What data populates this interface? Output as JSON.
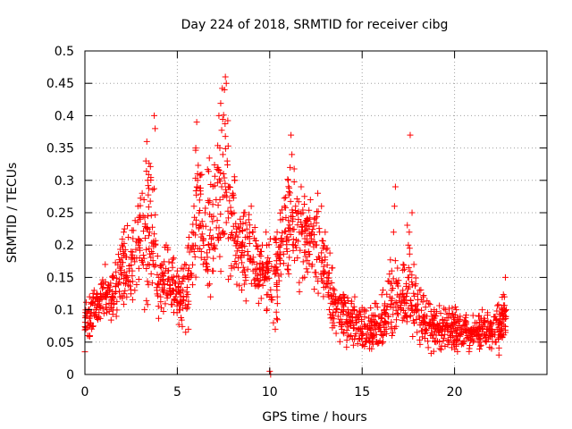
{
  "chart_data": {
    "type": "scatter",
    "title": "Day 224 of 2018, SRMTID for receiver cibg",
    "xlabel": "GPS time / hours",
    "ylabel": "SRMTID / TECUs",
    "xlim": [
      0,
      25
    ],
    "ylim": [
      0,
      0.5
    ],
    "x_ticks": [
      0,
      5,
      10,
      15,
      20
    ],
    "x_tick_labels": [
      "0",
      "5",
      "10",
      "15",
      "20"
    ],
    "y_ticks": [
      0,
      0.05,
      0.1,
      0.15,
      0.2,
      0.25,
      0.3,
      0.35,
      0.4,
      0.45,
      0.5
    ],
    "y_tick_labels": [
      "0",
      "0.05",
      "0.1",
      "0.15",
      "0.2",
      "0.25",
      "0.3",
      "0.35",
      "0.4",
      "0.45",
      "0.5"
    ],
    "grid": true,
    "marker": "+",
    "color": "#ff0000",
    "series": [
      {
        "name": "SRMTID",
        "points": [
          [
            0.0,
            0.035
          ],
          [
            0.05,
            0.07
          ],
          [
            0.1,
            0.09
          ],
          [
            0.15,
            0.06
          ],
          [
            0.2,
            0.1
          ],
          [
            0.25,
            0.12
          ],
          [
            0.3,
            0.08
          ],
          [
            0.35,
            0.095
          ],
          [
            0.4,
            0.11
          ],
          [
            0.45,
            0.075
          ],
          [
            0.5,
            0.13
          ],
          [
            0.6,
            0.1
          ],
          [
            0.7,
            0.085
          ],
          [
            0.8,
            0.115
          ],
          [
            0.9,
            0.14
          ],
          [
            1.0,
            0.12
          ],
          [
            1.1,
            0.17
          ],
          [
            1.2,
            0.1
          ],
          [
            1.3,
            0.13
          ],
          [
            1.4,
            0.11
          ],
          [
            1.5,
            0.15
          ],
          [
            1.6,
            0.125
          ],
          [
            1.7,
            0.09
          ],
          [
            1.8,
            0.14
          ],
          [
            1.9,
            0.12
          ],
          [
            2.0,
            0.2
          ],
          [
            2.1,
            0.22
          ],
          [
            2.2,
            0.14
          ],
          [
            2.3,
            0.23
          ],
          [
            2.4,
            0.16
          ],
          [
            2.5,
            0.19
          ],
          [
            2.6,
            0.21
          ],
          [
            2.7,
            0.13
          ],
          [
            2.8,
            0.18
          ],
          [
            2.9,
            0.2
          ],
          [
            3.0,
            0.24
          ],
          [
            3.1,
            0.28
          ],
          [
            3.2,
            0.27
          ],
          [
            3.3,
            0.33
          ],
          [
            3.35,
            0.36
          ],
          [
            3.4,
            0.3
          ],
          [
            3.5,
            0.22
          ],
          [
            3.6,
            0.19
          ],
          [
            3.7,
            0.17
          ],
          [
            3.75,
            0.4
          ],
          [
            3.8,
            0.38
          ],
          [
            3.9,
            0.13
          ],
          [
            4.0,
            0.15
          ],
          [
            4.1,
            0.12
          ],
          [
            4.2,
            0.17
          ],
          [
            4.3,
            0.14
          ],
          [
            4.4,
            0.2
          ],
          [
            4.5,
            0.16
          ],
          [
            4.6,
            0.13
          ],
          [
            4.7,
            0.15
          ],
          [
            4.8,
            0.18
          ],
          [
            4.9,
            0.12
          ],
          [
            5.0,
            0.16
          ],
          [
            5.1,
            0.1
          ],
          [
            5.2,
            0.14
          ],
          [
            5.3,
            0.13
          ],
          [
            5.4,
            0.17
          ],
          [
            5.5,
            0.12
          ],
          [
            5.6,
            0.07
          ],
          [
            5.7,
            0.15
          ],
          [
            5.8,
            0.22
          ],
          [
            5.9,
            0.26
          ],
          [
            6.0,
            0.35
          ],
          [
            6.05,
            0.39
          ],
          [
            6.1,
            0.3
          ],
          [
            6.2,
            0.23
          ],
          [
            6.3,
            0.19
          ],
          [
            6.4,
            0.21
          ],
          [
            6.5,
            0.25
          ],
          [
            6.6,
            0.17
          ],
          [
            6.7,
            0.2
          ],
          [
            6.8,
            0.12
          ],
          [
            6.9,
            0.16
          ],
          [
            7.0,
            0.2
          ],
          [
            7.1,
            0.27
          ],
          [
            7.2,
            0.32
          ],
          [
            7.25,
            0.4
          ],
          [
            7.3,
            0.35
          ],
          [
            7.4,
            0.29
          ],
          [
            7.5,
            0.31
          ],
          [
            7.55,
            0.44
          ],
          [
            7.6,
            0.46
          ],
          [
            7.65,
            0.45
          ],
          [
            7.7,
            0.33
          ],
          [
            7.8,
            0.29
          ],
          [
            7.9,
            0.25
          ],
          [
            8.0,
            0.28
          ],
          [
            8.1,
            0.3
          ],
          [
            8.2,
            0.22
          ],
          [
            8.3,
            0.18
          ],
          [
            8.4,
            0.24
          ],
          [
            8.5,
            0.2
          ],
          [
            8.6,
            0.25
          ],
          [
            8.7,
            0.15
          ],
          [
            8.8,
            0.19
          ],
          [
            8.9,
            0.21
          ],
          [
            9.0,
            0.26
          ],
          [
            9.1,
            0.16
          ],
          [
            9.2,
            0.14
          ],
          [
            9.3,
            0.17
          ],
          [
            9.4,
            0.11
          ],
          [
            9.5,
            0.19
          ],
          [
            9.6,
            0.2
          ],
          [
            9.7,
            0.15
          ],
          [
            9.8,
            0.22
          ],
          [
            9.9,
            0.18
          ],
          [
            10.0,
            0.005
          ],
          [
            10.05,
            0.0
          ],
          [
            10.1,
            0.12
          ],
          [
            10.2,
            0.08
          ],
          [
            10.3,
            0.07
          ],
          [
            10.4,
            0.22
          ],
          [
            10.5,
            0.18
          ],
          [
            10.6,
            0.2
          ],
          [
            10.7,
            0.24
          ],
          [
            10.8,
            0.26
          ],
          [
            10.9,
            0.21
          ],
          [
            11.0,
            0.3
          ],
          [
            11.1,
            0.32
          ],
          [
            11.15,
            0.37
          ],
          [
            11.2,
            0.34
          ],
          [
            11.3,
            0.2
          ],
          [
            11.4,
            0.26
          ],
          [
            11.5,
            0.18
          ],
          [
            11.6,
            0.22
          ],
          [
            11.7,
            0.29
          ],
          [
            11.8,
            0.25
          ],
          [
            11.9,
            0.21
          ],
          [
            12.0,
            0.23
          ],
          [
            12.1,
            0.19
          ],
          [
            12.2,
            0.27
          ],
          [
            12.3,
            0.17
          ],
          [
            12.4,
            0.24
          ],
          [
            12.5,
            0.2
          ],
          [
            12.6,
            0.28
          ],
          [
            12.7,
            0.22
          ],
          [
            12.8,
            0.26
          ],
          [
            12.9,
            0.16
          ],
          [
            13.0,
            0.22
          ],
          [
            13.1,
            0.15
          ],
          [
            13.2,
            0.12
          ],
          [
            13.3,
            0.11
          ],
          [
            13.4,
            0.08
          ],
          [
            13.5,
            0.13
          ],
          [
            13.6,
            0.1
          ],
          [
            13.7,
            0.09
          ],
          [
            13.8,
            0.12
          ],
          [
            13.9,
            0.07
          ],
          [
            14.0,
            0.1
          ],
          [
            14.1,
            0.11
          ],
          [
            14.2,
            0.08
          ],
          [
            14.3,
            0.09
          ],
          [
            14.4,
            0.06
          ],
          [
            14.5,
            0.1
          ],
          [
            14.6,
            0.12
          ],
          [
            14.7,
            0.08
          ],
          [
            14.8,
            0.09
          ],
          [
            14.9,
            0.07
          ],
          [
            15.0,
            0.06
          ],
          [
            15.1,
            0.1
          ],
          [
            15.2,
            0.05
          ],
          [
            15.3,
            0.07
          ],
          [
            15.4,
            0.04
          ],
          [
            15.5,
            0.08
          ],
          [
            15.6,
            0.06
          ],
          [
            15.7,
            0.09
          ],
          [
            15.8,
            0.05
          ],
          [
            15.9,
            0.07
          ],
          [
            16.0,
            0.08
          ],
          [
            16.1,
            0.06
          ],
          [
            16.2,
            0.1
          ],
          [
            16.3,
            0.07
          ],
          [
            16.4,
            0.09
          ],
          [
            16.5,
            0.12
          ],
          [
            16.6,
            0.16
          ],
          [
            16.7,
            0.22
          ],
          [
            16.75,
            0.26
          ],
          [
            16.8,
            0.29
          ],
          [
            16.9,
            0.14
          ],
          [
            17.0,
            0.12
          ],
          [
            17.1,
            0.1
          ],
          [
            17.2,
            0.13
          ],
          [
            17.3,
            0.09
          ],
          [
            17.4,
            0.11
          ],
          [
            17.5,
            0.2
          ],
          [
            17.55,
            0.22
          ],
          [
            17.6,
            0.37
          ],
          [
            17.7,
            0.25
          ],
          [
            17.8,
            0.17
          ],
          [
            17.9,
            0.14
          ],
          [
            18.0,
            0.1
          ],
          [
            18.1,
            0.13
          ],
          [
            18.2,
            0.08
          ],
          [
            18.3,
            0.12
          ],
          [
            18.4,
            0.07
          ],
          [
            18.5,
            0.09
          ],
          [
            18.6,
            0.11
          ],
          [
            18.7,
            0.06
          ],
          [
            18.8,
            0.08
          ],
          [
            18.9,
            0.1
          ],
          [
            19.0,
            0.05
          ],
          [
            19.1,
            0.07
          ],
          [
            19.2,
            0.04
          ],
          [
            19.3,
            0.06
          ],
          [
            19.4,
            0.08
          ],
          [
            19.5,
            0.1
          ],
          [
            19.6,
            0.07
          ],
          [
            19.7,
            0.05
          ],
          [
            19.8,
            0.09
          ],
          [
            19.9,
            0.06
          ],
          [
            20.0,
            0.08
          ],
          [
            20.1,
            0.1
          ],
          [
            20.2,
            0.06
          ],
          [
            20.3,
            0.09
          ],
          [
            20.4,
            0.07
          ],
          [
            20.5,
            0.05
          ],
          [
            20.6,
            0.08
          ],
          [
            20.7,
            0.06
          ],
          [
            20.8,
            0.04
          ],
          [
            20.9,
            0.07
          ],
          [
            21.0,
            0.05
          ],
          [
            21.1,
            0.08
          ],
          [
            21.2,
            0.06
          ],
          [
            21.3,
            0.09
          ],
          [
            21.4,
            0.07
          ],
          [
            21.5,
            0.1
          ],
          [
            21.6,
            0.08
          ],
          [
            21.7,
            0.05
          ],
          [
            21.8,
            0.07
          ],
          [
            21.9,
            0.06
          ],
          [
            22.0,
            0.04
          ],
          [
            22.1,
            0.08
          ],
          [
            22.2,
            0.05
          ],
          [
            22.3,
            0.07
          ],
          [
            22.4,
            0.03
          ],
          [
            22.5,
            0.06
          ],
          [
            22.6,
            0.09
          ],
          [
            22.7,
            0.12
          ],
          [
            22.75,
            0.15
          ],
          [
            22.8,
            0.1
          ]
        ],
        "scatter_envelope": [
          [
            0.0,
            0.04,
            0.12
          ],
          [
            0.5,
            0.06,
            0.14
          ],
          [
            1.0,
            0.08,
            0.17
          ],
          [
            1.5,
            0.07,
            0.17
          ],
          [
            2.0,
            0.1,
            0.24
          ],
          [
            2.5,
            0.1,
            0.23
          ],
          [
            3.0,
            0.1,
            0.3
          ],
          [
            3.5,
            0.07,
            0.38
          ],
          [
            4.0,
            0.08,
            0.22
          ],
          [
            4.5,
            0.09,
            0.2
          ],
          [
            5.0,
            0.07,
            0.18
          ],
          [
            5.5,
            0.05,
            0.2
          ],
          [
            6.0,
            0.12,
            0.38
          ],
          [
            6.5,
            0.12,
            0.32
          ],
          [
            7.0,
            0.1,
            0.38
          ],
          [
            7.5,
            0.15,
            0.46
          ],
          [
            8.0,
            0.12,
            0.34
          ],
          [
            8.5,
            0.1,
            0.28
          ],
          [
            9.0,
            0.1,
            0.27
          ],
          [
            9.5,
            0.1,
            0.22
          ],
          [
            10.0,
            0.05,
            0.23
          ],
          [
            10.5,
            0.08,
            0.28
          ],
          [
            11.0,
            0.12,
            0.36
          ],
          [
            11.5,
            0.12,
            0.3
          ],
          [
            12.0,
            0.13,
            0.3
          ],
          [
            12.5,
            0.12,
            0.3
          ],
          [
            13.0,
            0.07,
            0.25
          ],
          [
            13.5,
            0.05,
            0.16
          ],
          [
            14.0,
            0.04,
            0.14
          ],
          [
            14.5,
            0.04,
            0.12
          ],
          [
            15.0,
            0.03,
            0.12
          ],
          [
            15.5,
            0.03,
            0.11
          ],
          [
            16.0,
            0.03,
            0.12
          ],
          [
            16.5,
            0.05,
            0.2
          ],
          [
            17.0,
            0.05,
            0.18
          ],
          [
            17.5,
            0.05,
            0.24
          ],
          [
            18.0,
            0.04,
            0.14
          ],
          [
            18.5,
            0.03,
            0.12
          ],
          [
            19.0,
            0.03,
            0.11
          ],
          [
            19.5,
            0.03,
            0.11
          ],
          [
            20.0,
            0.03,
            0.11
          ],
          [
            20.5,
            0.03,
            0.1
          ],
          [
            21.0,
            0.03,
            0.1
          ],
          [
            21.5,
            0.03,
            0.11
          ],
          [
            22.0,
            0.03,
            0.1
          ],
          [
            22.5,
            0.03,
            0.12
          ],
          [
            22.8,
            0.06,
            0.15
          ]
        ]
      }
    ]
  }
}
